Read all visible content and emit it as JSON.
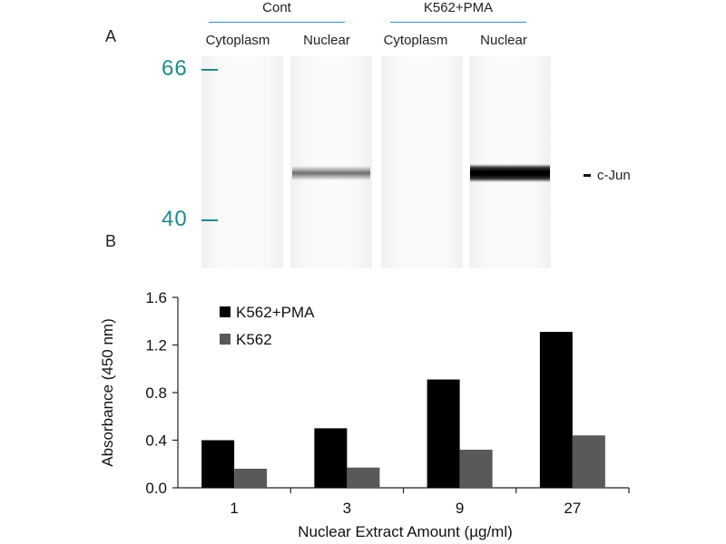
{
  "panel_a": {
    "label": "A",
    "groups": [
      {
        "label": "Cont",
        "lanes": [
          "Cytoplasm",
          "Nuclear"
        ]
      },
      {
        "label": "K562+PMA",
        "lanes": [
          "Cytoplasm",
          "Nuclear"
        ]
      }
    ],
    "mw_markers": [
      "66",
      "40"
    ],
    "band_label": "c-Jun"
  },
  "panel_b": {
    "label": "B"
  },
  "chart_data": {
    "type": "bar",
    "categories": [
      "1",
      "3",
      "9",
      "27"
    ],
    "series": [
      {
        "name": "K562+PMA",
        "values": [
          0.4,
          0.5,
          0.91,
          1.31
        ],
        "color": "#000000"
      },
      {
        "name": "K562",
        "values": [
          0.16,
          0.17,
          0.32,
          0.44
        ],
        "color": "#595959"
      }
    ],
    "xlabel": "Nuclear Extract Amount (µg/ml)",
    "ylabel": "Absorbance (450 nm)",
    "ylim": [
      0,
      1.6
    ],
    "yticks": [
      "0.0",
      "0.4",
      "0.8",
      "1.2",
      "1.6"
    ],
    "legend_position": "top-left",
    "grid": false
  }
}
